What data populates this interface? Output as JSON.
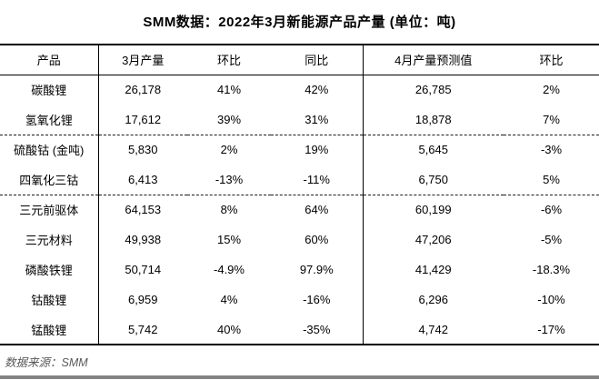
{
  "title": "SMM数据：2022年3月新能源产品产量 (单位：吨)",
  "source_note": "数据来源：SMM",
  "colors": {
    "text": "#000000",
    "border": "#000000",
    "source_text": "#595959",
    "bottom_bar": "#848484",
    "background": "#ffffff"
  },
  "chart_data": {
    "type": "table",
    "title": "SMM数据：2022年3月新能源产品产量 (单位：吨)",
    "unit": "吨",
    "columns": [
      {
        "label": "产品"
      },
      {
        "label": "3月产量"
      },
      {
        "label": "环比"
      },
      {
        "label": "同比"
      },
      {
        "label": "4月产量预测值"
      },
      {
        "label": "环比"
      }
    ],
    "rows": [
      {
        "cells": [
          "碳酸锂",
          "26,178",
          "41%",
          "42%",
          "26,785",
          "2%"
        ],
        "group_end": false
      },
      {
        "cells": [
          "氢氧化锂",
          "17,612",
          "39%",
          "31%",
          "18,878",
          "7%"
        ],
        "group_end": true
      },
      {
        "cells": [
          "硫酸钴 (金吨)",
          "5,830",
          "2%",
          "19%",
          "5,645",
          "-3%"
        ],
        "group_end": false
      },
      {
        "cells": [
          "四氧化三钴",
          "6,413",
          "-13%",
          "-11%",
          "6,750",
          "5%"
        ],
        "group_end": true
      },
      {
        "cells": [
          "三元前驱体",
          "64,153",
          "8%",
          "64%",
          "60,199",
          "-6%"
        ],
        "group_end": false
      },
      {
        "cells": [
          "三元材料",
          "49,938",
          "15%",
          "60%",
          "47,206",
          "-5%"
        ],
        "group_end": false
      },
      {
        "cells": [
          "磷酸铁锂",
          "50,714",
          "-4.9%",
          "97.9%",
          "41,429",
          "-18.3%"
        ],
        "group_end": false
      },
      {
        "cells": [
          "钴酸锂",
          "6,959",
          "4%",
          "-16%",
          "6,296",
          "-10%"
        ],
        "group_end": false
      },
      {
        "cells": [
          "锰酸锂",
          "5,742",
          "40%",
          "-35%",
          "4,742",
          "-17%"
        ],
        "group_end": false
      }
    ]
  }
}
